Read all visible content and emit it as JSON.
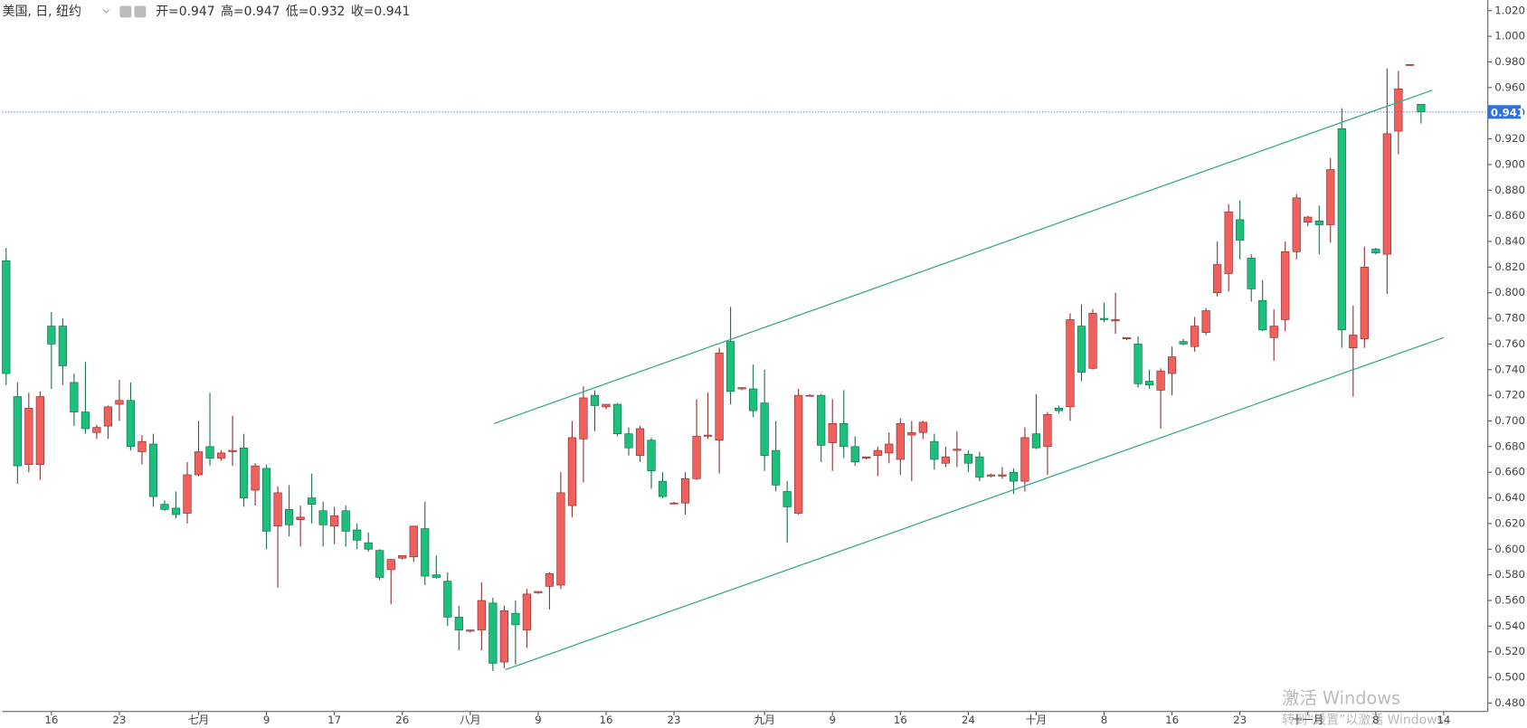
{
  "chart_data": {
    "type": "candlestick",
    "title": "美国, 日, 纽约",
    "ohlc_legend": [
      "开=0.947",
      "高=0.947",
      "低=0.932",
      "收=0.941"
    ],
    "up_color": "#f0605d",
    "down_color": "#1dbf7d",
    "up_edge": "#8a2d2b",
    "down_edge": "#17694a",
    "open": [
      0.825,
      0.719,
      0.666,
      0.666,
      0.774,
      0.774,
      0.73,
      0.707,
      0.691,
      0.696,
      0.713,
      0.716,
      0.676,
      0.682,
      0.635,
      0.632,
      0.628,
      0.658,
      0.68,
      0.671,
      0.676,
      0.679,
      0.646,
      0.663,
      0.618,
      0.631,
      0.623,
      0.64,
      0.63,
      0.618,
      0.63,
      0.615,
      0.605,
      0.599,
      0.584,
      0.593,
      0.594,
      0.616,
      0.58,
      0.575,
      0.547,
      0.536,
      0.537,
      0.558,
      0.512,
      0.55,
      0.537,
      0.566,
      0.571,
      0.572,
      0.634,
      0.686,
      0.72,
      0.711,
      0.713,
      0.69,
      0.673,
      0.685,
      0.653,
      0.636,
      0.636,
      0.655,
      0.688,
      0.685,
      0.762,
      0.725,
      0.725,
      0.714,
      0.677,
      0.645,
      0.628,
      0.72,
      0.72,
      0.683,
      0.698,
      0.68,
      0.671,
      0.673,
      0.675,
      0.67,
      0.689,
      0.691,
      0.684,
      0.667,
      0.677,
      0.674,
      0.672,
      0.657,
      0.657,
      0.66,
      0.653,
      0.69,
      0.68,
      0.71,
      0.711,
      0.774,
      0.741,
      0.78,
      0.778,
      0.764,
      0.76,
      0.731,
      0.724,
      0.737,
      0.762,
      0.758,
      0.769,
      0.8,
      0.815,
      0.857,
      0.827,
      0.794,
      0.765,
      0.779,
      0.832,
      0.855,
      0.856,
      0.853,
      0.928,
      0.757,
      0.764,
      0.834,
      0.83,
      0.926,
      0.978,
      0.947
    ],
    "high": [
      0.835,
      0.73,
      0.722,
      0.723,
      0.785,
      0.78,
      0.737,
      0.746,
      0.697,
      0.712,
      0.732,
      0.73,
      0.689,
      0.69,
      0.638,
      0.645,
      0.668,
      0.7,
      0.722,
      0.677,
      0.704,
      0.69,
      0.667,
      0.666,
      0.649,
      0.65,
      0.634,
      0.659,
      0.637,
      0.633,
      0.634,
      0.62,
      0.613,
      0.6,
      0.592,
      0.595,
      0.618,
      0.637,
      0.595,
      0.582,
      0.556,
      0.537,
      0.574,
      0.562,
      0.556,
      0.56,
      0.569,
      0.567,
      0.582,
      0.66,
      0.7,
      0.727,
      0.724,
      0.713,
      0.714,
      0.695,
      0.696,
      0.687,
      0.66,
      0.637,
      0.66,
      0.717,
      0.722,
      0.757,
      0.789,
      0.726,
      0.744,
      0.74,
      0.7,
      0.653,
      0.725,
      0.721,
      0.721,
      0.717,
      0.724,
      0.688,
      0.672,
      0.68,
      0.691,
      0.702,
      0.7,
      0.7,
      0.69,
      0.68,
      0.692,
      0.677,
      0.676,
      0.659,
      0.664,
      0.663,
      0.695,
      0.721,
      0.707,
      0.712,
      0.784,
      0.791,
      0.787,
      0.792,
      0.8,
      0.765,
      0.766,
      0.74,
      0.741,
      0.758,
      0.764,
      0.781,
      0.788,
      0.84,
      0.869,
      0.872,
      0.83,
      0.81,
      0.787,
      0.84,
      0.877,
      0.86,
      0.868,
      0.905,
      0.944,
      0.79,
      0.836,
      0.835,
      0.975,
      0.973,
      0.978,
      0.947
    ],
    "low": [
      0.728,
      0.651,
      0.66,
      0.654,
      0.725,
      0.728,
      0.696,
      0.69,
      0.686,
      0.686,
      0.7,
      0.677,
      0.666,
      0.633,
      0.63,
      0.624,
      0.62,
      0.657,
      0.665,
      0.669,
      0.665,
      0.633,
      0.634,
      0.6,
      0.57,
      0.61,
      0.602,
      0.62,
      0.602,
      0.604,
      0.602,
      0.6,
      0.598,
      0.576,
      0.557,
      0.592,
      0.59,
      0.572,
      0.577,
      0.54,
      0.521,
      0.535,
      0.521,
      0.505,
      0.507,
      0.51,
      0.523,
      0.565,
      0.553,
      0.569,
      0.625,
      0.652,
      0.692,
      0.709,
      0.688,
      0.673,
      0.668,
      0.647,
      0.64,
      0.635,
      0.627,
      0.654,
      0.686,
      0.659,
      0.713,
      0.724,
      0.703,
      0.661,
      0.645,
      0.605,
      0.627,
      0.719,
      0.668,
      0.661,
      0.671,
      0.665,
      0.67,
      0.657,
      0.667,
      0.658,
      0.653,
      0.686,
      0.662,
      0.664,
      0.664,
      0.66,
      0.653,
      0.656,
      0.655,
      0.643,
      0.645,
      0.678,
      0.658,
      0.706,
      0.7,
      0.731,
      0.74,
      0.777,
      0.768,
      0.763,
      0.726,
      0.725,
      0.694,
      0.72,
      0.759,
      0.754,
      0.767,
      0.797,
      0.801,
      0.826,
      0.793,
      0.77,
      0.747,
      0.77,
      0.826,
      0.852,
      0.83,
      0.839,
      0.757,
      0.719,
      0.757,
      0.83,
      0.799,
      0.908,
      0.977,
      0.932
    ],
    "close": [
      0.737,
      0.665,
      0.71,
      0.719,
      0.76,
      0.743,
      0.707,
      0.694,
      0.695,
      0.711,
      0.716,
      0.68,
      0.684,
      0.641,
      0.631,
      0.627,
      0.658,
      0.676,
      0.671,
      0.675,
      0.677,
      0.64,
      0.665,
      0.614,
      0.644,
      0.619,
      0.625,
      0.635,
      0.619,
      0.626,
      0.614,
      0.607,
      0.6,
      0.578,
      0.592,
      0.595,
      0.618,
      0.579,
      0.578,
      0.547,
      0.537,
      0.537,
      0.56,
      0.511,
      0.552,
      0.541,
      0.565,
      0.567,
      0.581,
      0.644,
      0.687,
      0.718,
      0.712,
      0.713,
      0.69,
      0.679,
      0.694,
      0.661,
      0.641,
      0.636,
      0.655,
      0.688,
      0.689,
      0.753,
      0.723,
      0.726,
      0.708,
      0.673,
      0.65,
      0.633,
      0.72,
      0.72,
      0.681,
      0.698,
      0.68,
      0.668,
      0.672,
      0.677,
      0.682,
      0.698,
      0.691,
      0.699,
      0.67,
      0.672,
      0.678,
      0.667,
      0.656,
      0.658,
      0.658,
      0.653,
      0.687,
      0.679,
      0.705,
      0.708,
      0.779,
      0.738,
      0.784,
      0.779,
      0.779,
      0.765,
      0.729,
      0.728,
      0.739,
      0.75,
      0.76,
      0.774,
      0.786,
      0.822,
      0.863,
      0.841,
      0.803,
      0.771,
      0.774,
      0.832,
      0.874,
      0.859,
      0.853,
      0.896,
      0.771,
      0.767,
      0.82,
      0.831,
      0.924,
      0.959,
      0.978,
      0.941
    ],
    "xlim": [
      -0.343,
      130.9
    ],
    "xticks": [
      {
        "value": 4,
        "label": "16"
      },
      {
        "value": 10,
        "label": "23"
      },
      {
        "value": 17,
        "label": "七月"
      },
      {
        "value": 23,
        "label": "9"
      },
      {
        "value": 29,
        "label": "17"
      },
      {
        "value": 35,
        "label": "26"
      },
      {
        "value": 41,
        "label": "八月"
      },
      {
        "value": 47,
        "label": "9"
      },
      {
        "value": 53,
        "label": "16"
      },
      {
        "value": 59,
        "label": "23"
      },
      {
        "value": 67,
        "label": "九月"
      },
      {
        "value": 73,
        "label": "9"
      },
      {
        "value": 79,
        "label": "16"
      },
      {
        "value": 85,
        "label": "24"
      },
      {
        "value": 91,
        "label": "十月"
      },
      {
        "value": 97,
        "label": "8"
      },
      {
        "value": 103,
        "label": "16"
      },
      {
        "value": 109,
        "label": "23"
      },
      {
        "value": 115,
        "label": "十一月"
      },
      {
        "value": 121,
        "label": "8"
      },
      {
        "value": 127,
        "label": "14"
      }
    ],
    "ylim": [
      0.4734,
      1.0283
    ],
    "yticks": [
      {
        "value": 0.48,
        "label": "0.480"
      },
      {
        "value": 0.5,
        "label": "0.500"
      },
      {
        "value": 0.52,
        "label": "0.520"
      },
      {
        "value": 0.54,
        "label": "0.540"
      },
      {
        "value": 0.56,
        "label": "0.560"
      },
      {
        "value": 0.58,
        "label": "0.580"
      },
      {
        "value": 0.6,
        "label": "0.600"
      },
      {
        "value": 0.62,
        "label": "0.620"
      },
      {
        "value": 0.64,
        "label": "0.640"
      },
      {
        "value": 0.66,
        "label": "0.660"
      },
      {
        "value": 0.68,
        "label": "0.680"
      },
      {
        "value": 0.7,
        "label": "0.700"
      },
      {
        "value": 0.72,
        "label": "0.720"
      },
      {
        "value": 0.74,
        "label": "0.740"
      },
      {
        "value": 0.76,
        "label": "0.760"
      },
      {
        "value": 0.78,
        "label": "0.780"
      },
      {
        "value": 0.8,
        "label": "0.800"
      },
      {
        "value": 0.82,
        "label": "0.820"
      },
      {
        "value": 0.84,
        "label": "0.840"
      },
      {
        "value": 0.86,
        "label": "0.860"
      },
      {
        "value": 0.88,
        "label": "0.880"
      },
      {
        "value": 0.9,
        "label": "0.900"
      },
      {
        "value": 0.92,
        "label": "0.920"
      },
      {
        "value": 0.94,
        "label": "0.940"
      },
      {
        "value": 0.96,
        "label": "0.960"
      },
      {
        "value": 0.98,
        "label": "0.980"
      },
      {
        "value": 1.0,
        "label": "1.000"
      },
      {
        "value": 1.02,
        "label": "1.020"
      }
    ],
    "last_price": 0.941,
    "last_price_color": "#2f6fe0",
    "trend_color": "#3aa88f",
    "trend_lines": [
      {
        "x": [
          43.1,
          126.0
        ],
        "y": [
          0.698,
          0.958
        ]
      },
      {
        "x": [
          44.1,
          127.0
        ],
        "y": [
          0.506,
          0.765
        ]
      }
    ]
  },
  "watermark": {
    "title": "激活 Windows",
    "subtitle": "转到“设置”以激活 Windows。"
  }
}
